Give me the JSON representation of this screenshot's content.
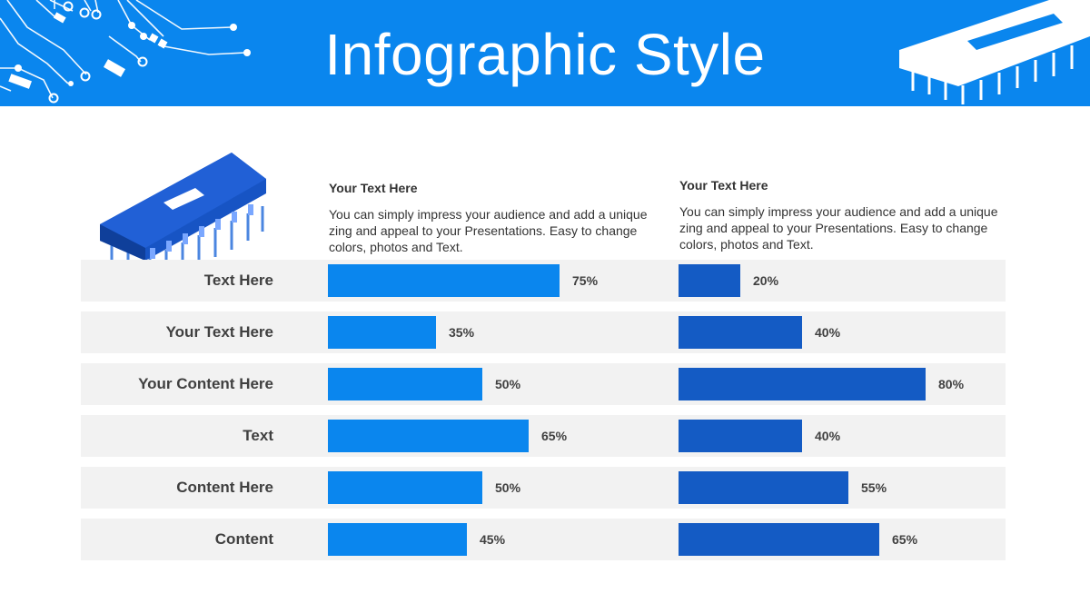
{
  "header": {
    "title": "Infographic Style"
  },
  "colors": {
    "header_bg": "#0a86ee",
    "series_a": "#0a86ee",
    "series_b": "#145bc4",
    "band": "#f2f2f2",
    "chip_blue": "#1754c4"
  },
  "icons": [
    "circuit-lines-icon",
    "microchip-icon"
  ],
  "columns": [
    {
      "heading": "Your Text  Here",
      "description": "You can simply impress your audience and add a unique zing and appeal to your Presentations. Easy to change colors, photos and Text."
    },
    {
      "heading": "Your Text  Here",
      "description": "You can simply impress your audience and add a unique zing and appeal to your Presentations. Easy to change colors, photos and Text."
    }
  ],
  "chart_data": {
    "type": "bar",
    "orientation": "horizontal",
    "categories": [
      "Text Here",
      "Your Text Here",
      "Your Content  Here",
      "Text",
      "Content Here",
      "Content"
    ],
    "series": [
      {
        "values": [
          75,
          35,
          50,
          65,
          50,
          45
        ],
        "labels": [
          "75%",
          "35%",
          "50%",
          "65%",
          "50%",
          "45%"
        ],
        "color": "#0a86ee"
      },
      {
        "values": [
          20,
          40,
          80,
          40,
          55,
          65
        ],
        "labels": [
          "20%",
          "40%",
          "80%",
          "40%",
          "55%",
          "65%"
        ],
        "color": "#145bc4"
      }
    ],
    "xlim": [
      0,
      100
    ],
    "grid": false,
    "legend": false
  }
}
